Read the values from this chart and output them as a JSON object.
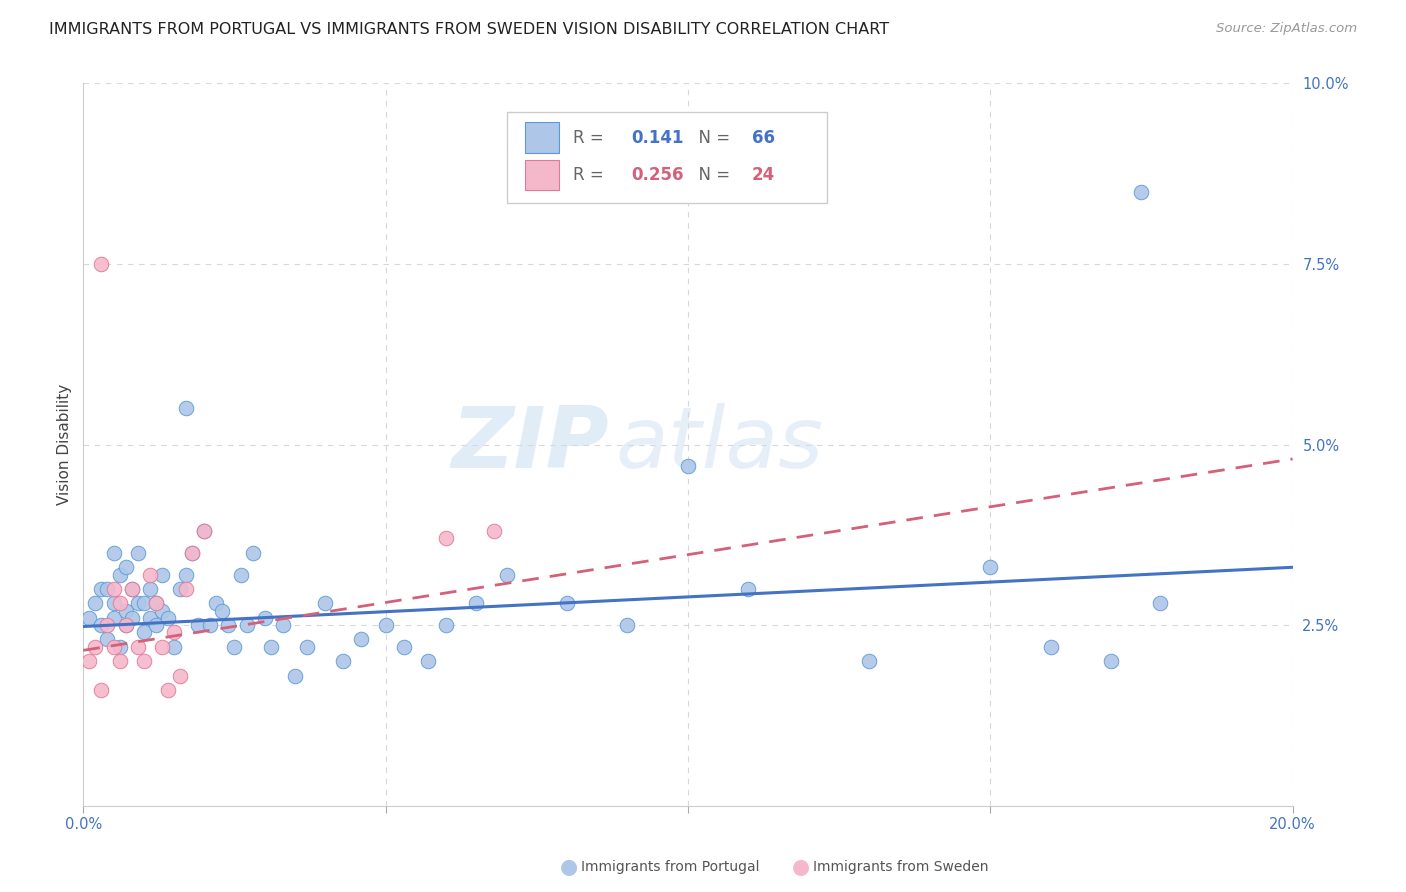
{
  "title": "IMMIGRANTS FROM PORTUGAL VS IMMIGRANTS FROM SWEDEN VISION DISABILITY CORRELATION CHART",
  "source": "Source: ZipAtlas.com",
  "ylabel": "Vision Disability",
  "xlim": [
    0.0,
    0.2
  ],
  "ylim": [
    0.0,
    0.1
  ],
  "yticks_right": [
    0.025,
    0.05,
    0.075,
    0.1
  ],
  "ytick_right_labels": [
    "2.5%",
    "5.0%",
    "7.5%",
    "10.0%"
  ],
  "grid_color": "#d8d8d8",
  "background_color": "#ffffff",
  "portugal_fill_color": "#aec6e8",
  "portugal_edge_color": "#5b9bd5",
  "sweden_fill_color": "#f4b8cb",
  "sweden_edge_color": "#e07898",
  "portugal_line_color": "#4472c4",
  "sweden_line_color": "#d4607a",
  "legend_r_portugal": "0.141",
  "legend_n_portugal": "66",
  "legend_r_sweden": "0.256",
  "legend_n_sweden": "24",
  "label_portugal": "Immigrants from Portugal",
  "label_sweden": "Immigrants from Sweden",
  "portugal_scatter_x": [
    0.001,
    0.002,
    0.003,
    0.003,
    0.004,
    0.004,
    0.005,
    0.005,
    0.005,
    0.006,
    0.006,
    0.007,
    0.007,
    0.007,
    0.008,
    0.008,
    0.009,
    0.009,
    0.01,
    0.01,
    0.011,
    0.011,
    0.012,
    0.012,
    0.013,
    0.013,
    0.014,
    0.015,
    0.016,
    0.017,
    0.017,
    0.018,
    0.019,
    0.02,
    0.021,
    0.022,
    0.023,
    0.024,
    0.025,
    0.026,
    0.027,
    0.028,
    0.03,
    0.031,
    0.033,
    0.035,
    0.037,
    0.04,
    0.043,
    0.046,
    0.05,
    0.053,
    0.057,
    0.06,
    0.065,
    0.07,
    0.08,
    0.09,
    0.1,
    0.11,
    0.13,
    0.15,
    0.16,
    0.17,
    0.175,
    0.178
  ],
  "portugal_scatter_y": [
    0.026,
    0.028,
    0.03,
    0.025,
    0.03,
    0.023,
    0.028,
    0.026,
    0.035,
    0.032,
    0.022,
    0.027,
    0.025,
    0.033,
    0.026,
    0.03,
    0.028,
    0.035,
    0.024,
    0.028,
    0.026,
    0.03,
    0.025,
    0.028,
    0.027,
    0.032,
    0.026,
    0.022,
    0.03,
    0.055,
    0.032,
    0.035,
    0.025,
    0.038,
    0.025,
    0.028,
    0.027,
    0.025,
    0.022,
    0.032,
    0.025,
    0.035,
    0.026,
    0.022,
    0.025,
    0.018,
    0.022,
    0.028,
    0.02,
    0.023,
    0.025,
    0.022,
    0.02,
    0.025,
    0.028,
    0.032,
    0.028,
    0.025,
    0.047,
    0.03,
    0.02,
    0.033,
    0.022,
    0.02,
    0.085,
    0.028
  ],
  "sweden_scatter_x": [
    0.001,
    0.002,
    0.003,
    0.003,
    0.004,
    0.005,
    0.005,
    0.006,
    0.006,
    0.007,
    0.008,
    0.009,
    0.01,
    0.011,
    0.012,
    0.013,
    0.014,
    0.015,
    0.016,
    0.017,
    0.018,
    0.02,
    0.06,
    0.068
  ],
  "sweden_scatter_y": [
    0.02,
    0.022,
    0.016,
    0.075,
    0.025,
    0.03,
    0.022,
    0.028,
    0.02,
    0.025,
    0.03,
    0.022,
    0.02,
    0.032,
    0.028,
    0.022,
    0.016,
    0.024,
    0.018,
    0.03,
    0.035,
    0.038,
    0.037,
    0.038
  ],
  "portugal_trend_x": [
    0.0,
    0.2
  ],
  "portugal_trend_y": [
    0.0248,
    0.033
  ],
  "sweden_trend_x": [
    0.0,
    0.2
  ],
  "sweden_trend_y": [
    0.0215,
    0.048
  ],
  "watermark_zip": "ZIP",
  "watermark_atlas": "atlas",
  "title_fontsize": 11.5,
  "axis_label_fontsize": 11,
  "tick_fontsize": 10.5,
  "legend_fontsize": 12
}
